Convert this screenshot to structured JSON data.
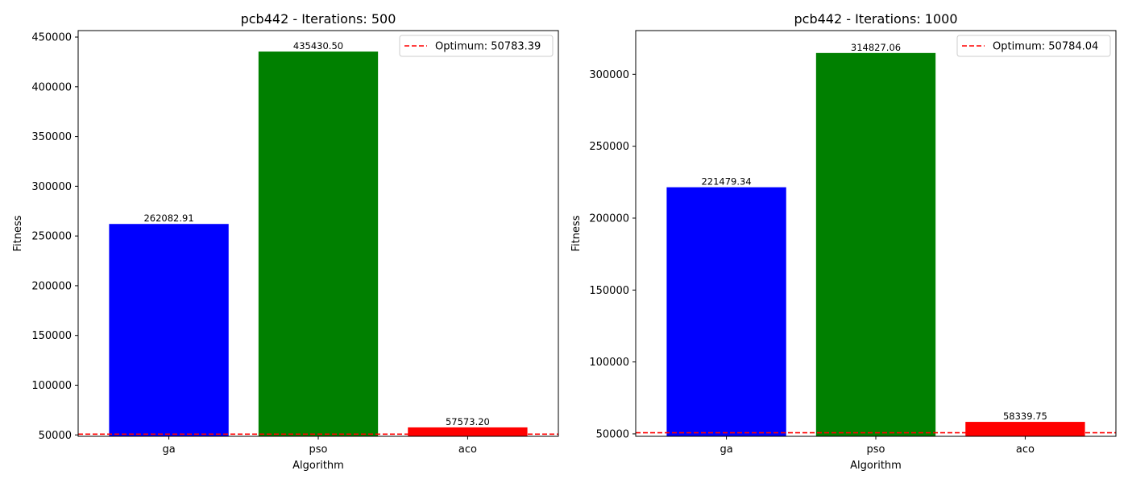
{
  "chart_data": [
    {
      "type": "bar",
      "title": "pcb442 - Iterations: 500",
      "xlabel": "Algorithm",
      "ylabel": "Fitness",
      "categories": [
        "ga",
        "pso",
        "aco"
      ],
      "values": [
        262082.91,
        435430.5,
        57573.2
      ],
      "value_labels": [
        "262082.91",
        "435430.50",
        "57573.20"
      ],
      "colors": [
        "#0000ff",
        "#008000",
        "#ff0000"
      ],
      "ylim": [
        48600,
        456500
      ],
      "yticks": [
        50000,
        100000,
        150000,
        200000,
        250000,
        300000,
        350000,
        400000,
        450000
      ],
      "yticklabels": [
        "50000",
        "100000",
        "150000",
        "200000",
        "250000",
        "300000",
        "350000",
        "400000",
        "450000"
      ],
      "reference_line": {
        "value": 50783.39,
        "label": "Optimum: 50783.39",
        "color": "#ff0000",
        "style": "dashed"
      },
      "legend": {
        "position": "upper-right"
      },
      "grid": false
    },
    {
      "type": "bar",
      "title": "pcb442 - Iterations: 1000",
      "xlabel": "Algorithm",
      "ylabel": "Fitness",
      "categories": [
        "ga",
        "pso",
        "aco"
      ],
      "values": [
        221479.34,
        314827.06,
        58339.75
      ],
      "value_labels": [
        "221479.34",
        "314827.06",
        "58339.75"
      ],
      "colors": [
        "#0000ff",
        "#008000",
        "#ff0000"
      ],
      "ylim": [
        48300,
        330400
      ],
      "yticks": [
        50000,
        100000,
        150000,
        200000,
        250000,
        300000
      ],
      "yticklabels": [
        "50000",
        "100000",
        "150000",
        "200000",
        "250000",
        "300000"
      ],
      "reference_line": {
        "value": 50784.04,
        "label": "Optimum: 50784.04",
        "color": "#ff0000",
        "style": "dashed"
      },
      "legend": {
        "position": "upper-right"
      },
      "grid": false
    }
  ]
}
